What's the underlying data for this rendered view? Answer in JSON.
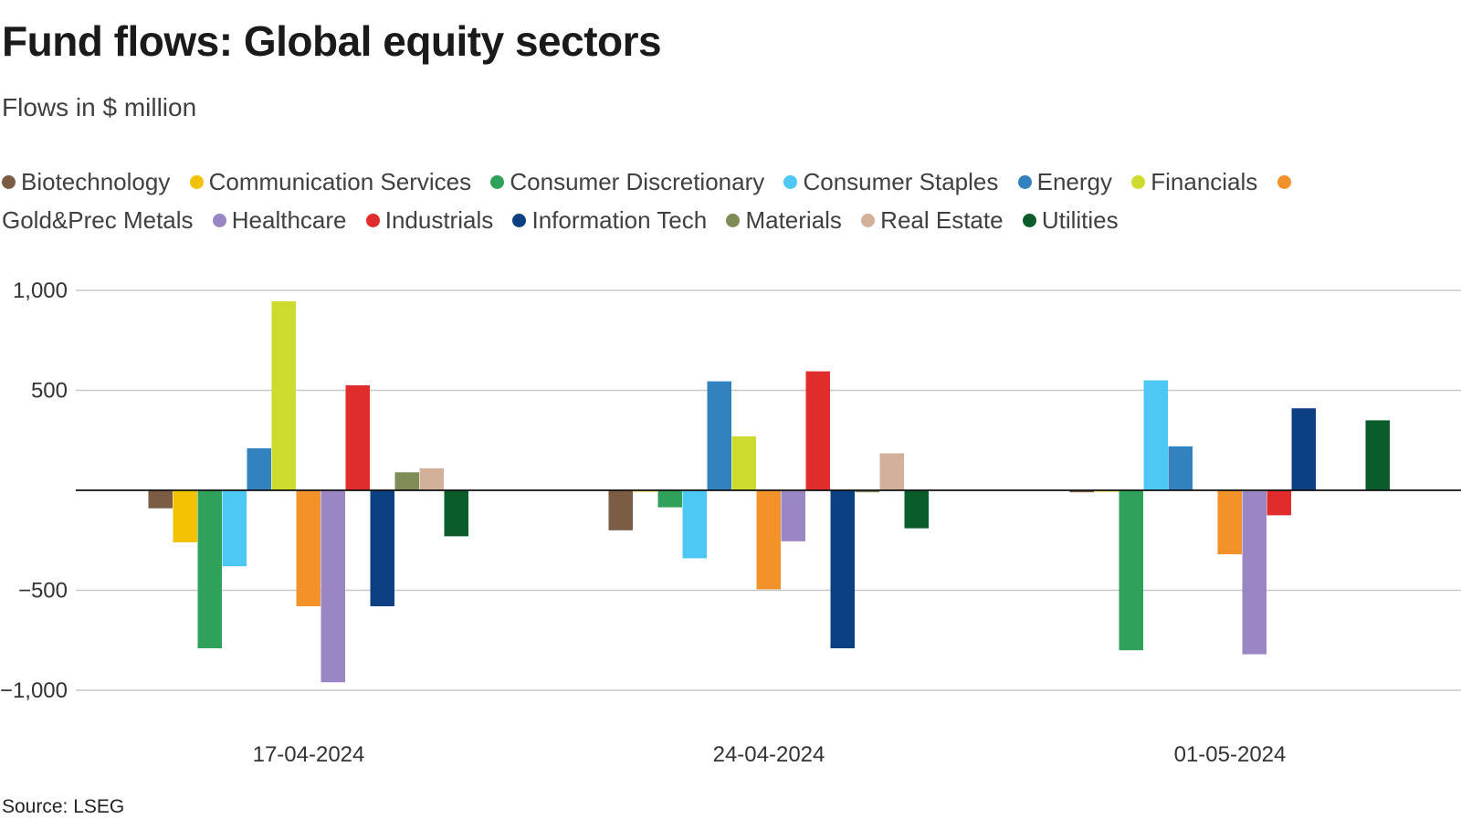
{
  "header": {
    "title": "Fund flows: Global equity sectors",
    "subtitle": "Flows in $ million"
  },
  "footer": {
    "source": "Source: LSEG"
  },
  "chart_data": {
    "type": "bar",
    "title": "Fund flows: Global equity sectors",
    "subtitle": "Flows in $ million",
    "xlabel": "",
    "ylabel": "",
    "ylim": [
      -1000,
      1000
    ],
    "yticks": [
      1000,
      500,
      -500,
      -1000
    ],
    "ytick_labels": [
      "1,000",
      "500",
      "−500",
      "−1,000"
    ],
    "grid": true,
    "legend_position": "top",
    "categories": [
      "17-04-2024",
      "24-04-2024",
      "01-05-2024"
    ],
    "series": [
      {
        "name": "Biotechnology",
        "color": "#7b5c45",
        "values": [
          -90,
          -200,
          -10
        ]
      },
      {
        "name": "Communication Services",
        "color": "#f2c200",
        "values": [
          -260,
          -5,
          -5
        ]
      },
      {
        "name": "Consumer Discretionary",
        "color": "#30a15a",
        "values": [
          -790,
          -85,
          -800
        ]
      },
      {
        "name": "Consumer Staples",
        "color": "#4dc8f5",
        "values": [
          -380,
          -340,
          550
        ]
      },
      {
        "name": "Energy",
        "color": "#3282c0",
        "values": [
          210,
          545,
          220
        ]
      },
      {
        "name": "Financials",
        "color": "#cdda2e",
        "values": [
          945,
          270,
          0
        ]
      },
      {
        "name": "Gold&Prec Metals",
        "color": "#f39229",
        "values": [
          -580,
          -495,
          -320
        ]
      },
      {
        "name": "Healthcare",
        "color": "#9a85c5",
        "values": [
          -960,
          -255,
          -820
        ]
      },
      {
        "name": "Industrials",
        "color": "#e02c2a",
        "values": [
          525,
          595,
          -125
        ]
      },
      {
        "name": "Information Tech",
        "color": "#0b4182",
        "values": [
          -580,
          -790,
          410
        ]
      },
      {
        "name": "Materials",
        "color": "#7f8c57",
        "values": [
          90,
          -10,
          0
        ]
      },
      {
        "name": "Real Estate",
        "color": "#d3b09a",
        "values": [
          110,
          185,
          0
        ]
      },
      {
        "name": "Utilities",
        "color": "#0a5d2a",
        "values": [
          -230,
          -190,
          350
        ]
      }
    ]
  }
}
